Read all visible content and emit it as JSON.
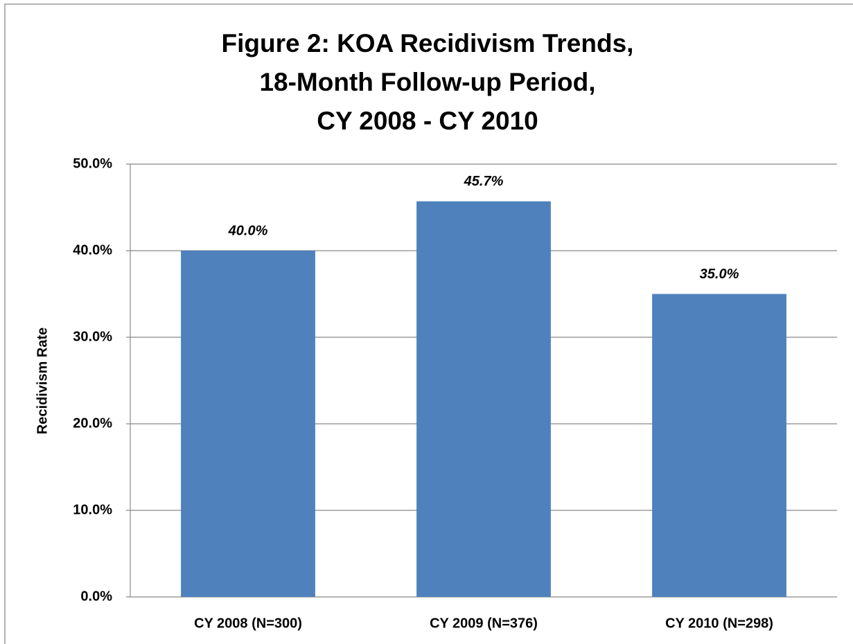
{
  "chart_data": {
    "type": "bar",
    "title": [
      "Figure 2: KOA Recidivism Trends,",
      "18-Month Follow-up Period,",
      "CY 2008 - CY 2010"
    ],
    "y_label": "Recidivism Rate",
    "categories": [
      "CY 2008 (N=300)",
      "CY 2009 (N=376)",
      "CY 2010 (N=298)"
    ],
    "values": [
      40,
      45.7,
      35
    ],
    "value_labels": [
      "40.0%",
      "45.7%",
      "35.0%"
    ],
    "color": "#4f81bd",
    "ylim": [
      0,
      50
    ],
    "yticks": [
      {
        "value": 0,
        "label": "0.0%"
      },
      {
        "value": 10,
        "label": "10.0%"
      },
      {
        "value": 20,
        "label": "20.0%"
      },
      {
        "value": 30,
        "label": "30.0%"
      },
      {
        "value": 40,
        "label": "40.0%"
      },
      {
        "value": 50,
        "label": "50.0%"
      }
    ],
    "grid": true
  }
}
